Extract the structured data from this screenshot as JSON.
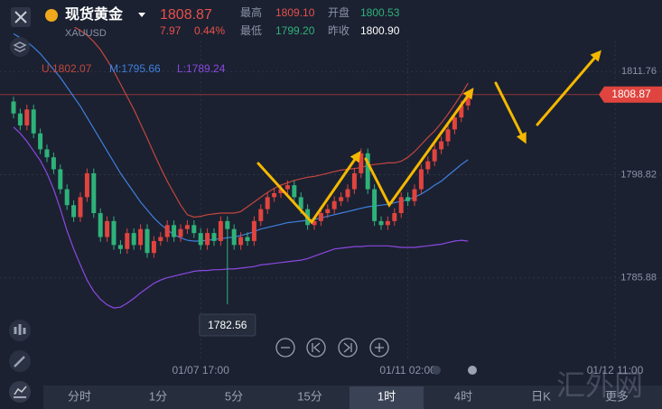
{
  "header": {
    "title": "现货黄金",
    "symbol": "XAUUSD",
    "price": "1808.87",
    "change": "7.97",
    "change_pct": "0.44%",
    "stats": [
      {
        "label": "最高",
        "value": "1809.10"
      },
      {
        "label": "开盘",
        "value": "1800.53"
      },
      {
        "label": "最低",
        "value": "1799.20"
      },
      {
        "label": "昨收",
        "value": "1800.90"
      }
    ]
  },
  "tabs": [
    {
      "label": "分时"
    },
    {
      "label": "1分"
    },
    {
      "label": "5分"
    },
    {
      "label": "15分"
    },
    {
      "label": "1时",
      "selected": true
    },
    {
      "label": "4时"
    },
    {
      "label": "日K"
    },
    {
      "label": "更多"
    }
  ],
  "watermark": "汇外网",
  "chart_data": {
    "type": "candlestick",
    "up_color": "#e0443e",
    "down_color": "#2fb27a",
    "grid": true,
    "current_price": 1808.87,
    "ylim": [
      1776,
      1816.2
    ],
    "yticks": [
      1811.76,
      1798.82,
      1785.88
    ],
    "categories": [
      null,
      null,
      null,
      null,
      null,
      null,
      null,
      null,
      null,
      null,
      null,
      null,
      null,
      null,
      null,
      null,
      null,
      null,
      null,
      null,
      null,
      null,
      null,
      null,
      null,
      null,
      null,
      null,
      "01/07 17:00",
      null,
      null,
      null,
      null,
      null,
      null,
      null,
      null,
      null,
      null,
      null,
      null,
      null,
      null,
      null,
      null,
      null,
      null,
      null,
      null,
      null,
      null,
      null,
      null,
      null,
      null,
      null,
      null,
      null,
      null,
      "01/11 02:00",
      null,
      null,
      null,
      null,
      null,
      null,
      null,
      null,
      null,
      null,
      null,
      null,
      null,
      null,
      null,
      null,
      null,
      null,
      null,
      null,
      null,
      null,
      null,
      null,
      null,
      null,
      null,
      null,
      null,
      null,
      "01/12 11:00"
    ],
    "open": [
      1808,
      1806.5,
      1805,
      1807,
      1804,
      1802,
      1801,
      1799.5,
      1797,
      1795,
      1793.5,
      1796,
      1799,
      1794,
      1791,
      1793,
      1790,
      1789.5,
      1791.5,
      1790,
      1792,
      1789,
      1790.5,
      1791,
      1792.5,
      1791,
      1792,
      1792.5,
      1791.5,
      1790,
      1791.5,
      1790.5,
      1793,
      1792,
      1790,
      1791,
      1790.5,
      1793,
      1794.5,
      1796,
      1796.5,
      1797,
      1797.5,
      1796,
      1794.5,
      1792.5,
      1793,
      1794,
      1794.5,
      1795.5,
      1796,
      1797,
      1799,
      1801.5,
      1797,
      1793,
      1792.5,
      1793,
      1794,
      1796,
      1795.5,
      1797,
      1799.5,
      1800.5,
      1802,
      1803,
      1804.5,
      1806,
      1807.5,
      null,
      null,
      null,
      null,
      null,
      null,
      null,
      null,
      null,
      null,
      null,
      null,
      null,
      null,
      null,
      null,
      null,
      null,
      null,
      null,
      null,
      null
    ],
    "high": [
      1808.6,
      1807.1,
      1807.6,
      1807.6,
      1804.6,
      1802.6,
      1801.6,
      1800.1,
      1797.6,
      1795.6,
      1796.6,
      1799.6,
      1799.6,
      1794.6,
      1793.6,
      1793.6,
      1790.6,
      1792.1,
      1792.1,
      1792.6,
      1792.6,
      1791.1,
      1791.6,
      1793.1,
      1793.1,
      1792.6,
      1793.1,
      1793.1,
      1792.1,
      1792.1,
      1792.1,
      1793.6,
      1793.6,
      1792.6,
      1791.6,
      1791.6,
      1793.6,
      1795.1,
      1796.6,
      1797.1,
      1797.6,
      1798.1,
      1798.1,
      1796.6,
      1795.1,
      1793.6,
      1794.6,
      1795.1,
      1796.1,
      1796.6,
      1797.6,
      1799.6,
      1802.1,
      1802.1,
      1797.6,
      1793.6,
      1793.6,
      1794.6,
      1796.6,
      1796.6,
      1797.6,
      1800.1,
      1801.1,
      1802.6,
      1803.6,
      1805.1,
      1806.6,
      1808.1,
      1809.1,
      null,
      null,
      null,
      null,
      null,
      null,
      null,
      null,
      null,
      null,
      null,
      null,
      null,
      null,
      null,
      null,
      null,
      null,
      null,
      null,
      null,
      null
    ],
    "low": [
      1805.9,
      1804.4,
      1804.4,
      1803.4,
      1801.4,
      1800.4,
      1798.9,
      1796.4,
      1794.4,
      1792.9,
      1792.9,
      1795.4,
      1793.4,
      1790.4,
      1790.4,
      1789.4,
      1788.9,
      1788.9,
      1789.4,
      1789.4,
      1788.4,
      1788.4,
      1789.9,
      1790.4,
      1790.4,
      1790.4,
      1791.4,
      1790.9,
      1789.4,
      1789.4,
      1789.9,
      1789.9,
      1782.56,
      1789.4,
      1789.4,
      1789.9,
      1789.9,
      1792.4,
      1793.9,
      1795.4,
      1795.9,
      1796.4,
      1795.4,
      1793.9,
      1791.9,
      1791.9,
      1792.4,
      1793.4,
      1793.9,
      1794.9,
      1795.4,
      1796.4,
      1798.4,
      1796.4,
      1792.4,
      1791.9,
      1791.9,
      1792.4,
      1793.4,
      1794.9,
      1794.9,
      1796.4,
      1798.9,
      1799.9,
      1801.4,
      1802.4,
      1803.9,
      1805.4,
      1806.9,
      null,
      null,
      null,
      null,
      null,
      null,
      null,
      null,
      null,
      null,
      null,
      null,
      null,
      null,
      null,
      null,
      null,
      null,
      null,
      null,
      null,
      null
    ],
    "close": [
      1806.5,
      1805,
      1807,
      1804,
      1802,
      1801,
      1799.5,
      1797,
      1795,
      1793.5,
      1796,
      1799,
      1794,
      1791,
      1793,
      1790,
      1789.5,
      1791.5,
      1790,
      1792,
      1789,
      1790.5,
      1791,
      1792.5,
      1791,
      1792,
      1792.5,
      1791.5,
      1790,
      1791.5,
      1790.5,
      1793,
      1792,
      1790,
      1791,
      1790.5,
      1793,
      1794.5,
      1796,
      1796.5,
      1797,
      1797.5,
      1796,
      1794.5,
      1792.5,
      1793,
      1794,
      1794.5,
      1795.5,
      1796,
      1797,
      1799,
      1801.5,
      1797,
      1793,
      1792.5,
      1793,
      1794,
      1796,
      1795.5,
      1797,
      1799.5,
      1800.5,
      1802,
      1803,
      1804.5,
      1806,
      1807.5,
      1808.87,
      null,
      null,
      null,
      null,
      null,
      null,
      null,
      null,
      null,
      null,
      null,
      null,
      null,
      null,
      null,
      null,
      null,
      null,
      null,
      null,
      null,
      null
    ],
    "series": [
      {
        "name": "U:1802.07",
        "color": "#c4463d",
        "values": [
          1820,
          1820,
          1819.8,
          1819.5,
          1819.2,
          1819,
          1818.6,
          1818.2,
          1817.8,
          1817.4,
          1816.9,
          1816.3,
          1815.5,
          1814.5,
          1813.2,
          1811.8,
          1810.2,
          1808.6,
          1807,
          1805.2,
          1803.4,
          1801.5,
          1799.7,
          1798,
          1796.5,
          1795,
          1793.8,
          1793.5,
          1793.6,
          1793.8,
          1793.9,
          1794,
          1794,
          1794,
          1794.2,
          1794.8,
          1795.4,
          1796,
          1796.6,
          1797.1,
          1797.5,
          1797.8,
          1798.1,
          1798.3,
          1798.5,
          1798.6,
          1798.8,
          1799,
          1799.2,
          1799.4,
          1799.5,
          1799.6,
          1799.7,
          1800,
          1800.1,
          1800.2,
          1800.3,
          1800.3,
          1800.5,
          1801,
          1801.7,
          1802.6,
          1803.5,
          1804.3,
          1805.3,
          1806.4,
          1807.6,
          1808.9,
          1810.3,
          null,
          null,
          null,
          null,
          null,
          null,
          null,
          null,
          null,
          null,
          null,
          null,
          null,
          null,
          null,
          null,
          null,
          null,
          null,
          null,
          null,
          null
        ]
      },
      {
        "name": "M:1795.66",
        "color": "#3f7fdc",
        "values": [
          1816.5,
          1816,
          1815.5,
          1814.8,
          1814,
          1813,
          1812,
          1811,
          1809.8,
          1808.6,
          1807.4,
          1806,
          1804.6,
          1803.2,
          1801.8,
          1800.4,
          1799,
          1797.8,
          1796.6,
          1795.4,
          1794.4,
          1793.4,
          1792.6,
          1791.9,
          1791.3,
          1790.9,
          1790.6,
          1790.5,
          1790.5,
          1790.6,
          1790.7,
          1790.8,
          1790.9,
          1791,
          1791.2,
          1791.4,
          1791.7,
          1792,
          1792.2,
          1792.4,
          1792.6,
          1792.8,
          1792.9,
          1793,
          1793.1,
          1793.2,
          1793.4,
          1793.6,
          1793.8,
          1794,
          1794.2,
          1794.4,
          1794.6,
          1794.8,
          1794.9,
          1795,
          1795.1,
          1795.3,
          1795.5,
          1795.7,
          1796,
          1796.4,
          1796.9,
          1797.5,
          1798,
          1798.7,
          1799.4,
          1800.1,
          1800.7,
          null,
          null,
          null,
          null,
          null,
          null,
          null,
          null,
          null,
          null,
          null,
          null,
          null,
          null,
          null,
          null,
          null,
          null,
          null,
          null,
          null,
          null
        ]
      },
      {
        "name": "L:1789.24",
        "color": "#8b48e0",
        "values": [
          1804.8,
          1804,
          1803,
          1801.8,
          1800.6,
          1799,
          1797,
          1794.5,
          1791.8,
          1789.5,
          1787.5,
          1785.6,
          1784.2,
          1783.2,
          1782.5,
          1782.1,
          1782.2,
          1782.7,
          1783.3,
          1784,
          1784.6,
          1785.2,
          1785.6,
          1785.9,
          1786.1,
          1786.3,
          1786.5,
          1786.7,
          1786.8,
          1786.8,
          1786.9,
          1786.9,
          1787,
          1787,
          1787.1,
          1787.2,
          1787.3,
          1787.5,
          1787.6,
          1787.7,
          1787.8,
          1787.9,
          1788,
          1788.1,
          1788.3,
          1788.6,
          1788.9,
          1789.2,
          1789.5,
          1789.6,
          1789.7,
          1789.8,
          1789.8,
          1789.9,
          1789.9,
          1789.9,
          1789.9,
          1789.8,
          1789.7,
          1789.7,
          1789.7,
          1789.8,
          1789.9,
          1790,
          1790.1,
          1790.3,
          1790.5,
          1790.6,
          1790.5,
          null,
          null,
          null,
          null,
          null,
          null,
          null,
          null,
          null,
          null,
          null,
          null,
          null,
          null,
          null,
          null,
          null,
          null,
          null,
          null,
          null,
          null
        ]
      }
    ]
  }
}
